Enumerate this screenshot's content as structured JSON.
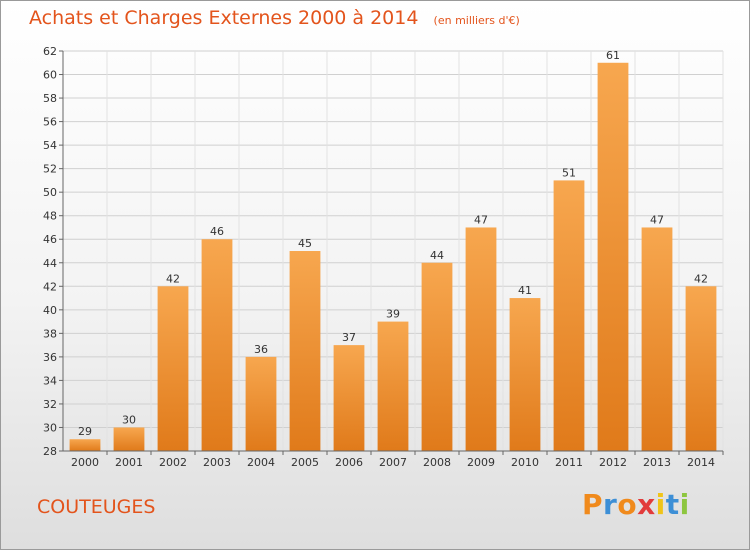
{
  "header": {
    "title": "Achats et Charges Externes 2000 à 2014",
    "unit": "(en milliers d'€)"
  },
  "footer": {
    "commune": "COUTEUGES",
    "logo_text": "Proxiti"
  },
  "colors": {
    "title": "#e3541c",
    "bar_light": "#f7a74f",
    "bar_dark": "#e07a1a",
    "logo_letters": [
      "#f08a1c",
      "#3d8fd6",
      "#f08a1c",
      "#e23b3b",
      "#f0c419",
      "#3d8fd6",
      "#8dc63f"
    ]
  },
  "chart_data": {
    "type": "bar",
    "categories": [
      "2000",
      "2001",
      "2002",
      "2003",
      "2004",
      "2005",
      "2006",
      "2007",
      "2008",
      "2009",
      "2010",
      "2011",
      "2012",
      "2013",
      "2014"
    ],
    "values": [
      29,
      30,
      42,
      46,
      36,
      45,
      37,
      39,
      44,
      47,
      41,
      51,
      61,
      47,
      42
    ],
    "title": "Achats et Charges Externes 2000 à 2014",
    "ylim": [
      28,
      62
    ],
    "yticks": [
      28,
      30,
      32,
      34,
      36,
      38,
      40,
      42,
      44,
      46,
      48,
      50,
      52,
      54,
      56,
      58,
      60,
      62
    ],
    "grid": true,
    "data_labels": true
  }
}
